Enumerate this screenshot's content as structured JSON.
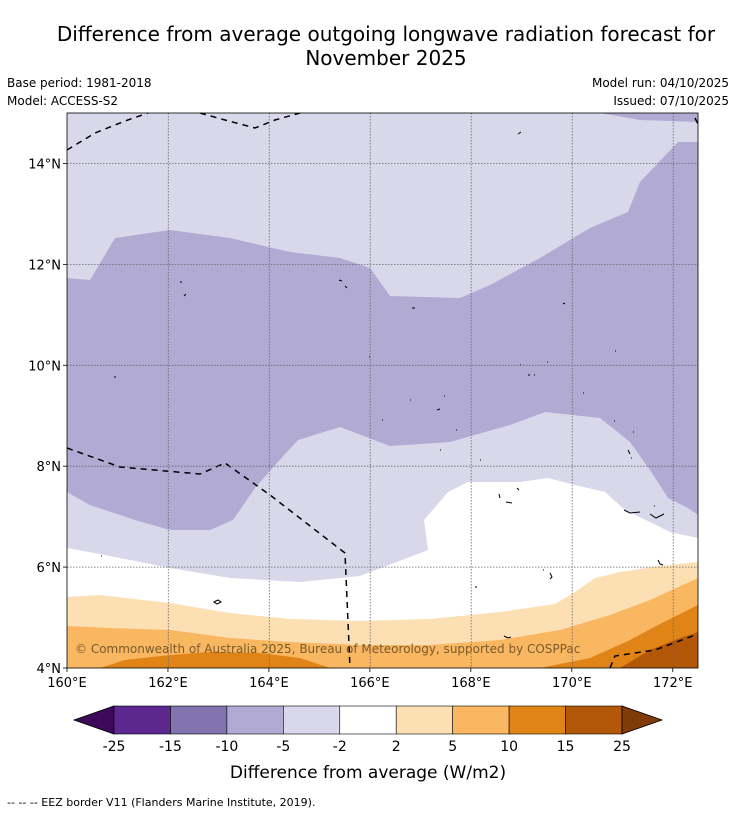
{
  "header": {
    "title_line1": "Difference from average outgoing longwave radiation forecast for",
    "title_line2": "November 2025",
    "base_period": "Base period: 1981-2018",
    "model": "Model: ACCESS-S2",
    "model_run": "Model run: 04/10/2025",
    "issued": "Issued: 07/10/2025"
  },
  "map": {
    "lon_range": [
      160,
      172.5
    ],
    "lat_range": [
      4,
      15
    ],
    "lat_ticks": [
      {
        "value": 4,
        "label": "4°N"
      },
      {
        "value": 6,
        "label": "6°N"
      },
      {
        "value": 8,
        "label": "8°N"
      },
      {
        "value": 10,
        "label": "10°N"
      },
      {
        "value": 12,
        "label": "12°N"
      },
      {
        "value": 14,
        "label": "14°N"
      }
    ],
    "lon_ticks": [
      {
        "value": 160,
        "label": "160°E"
      },
      {
        "value": 162,
        "label": "162°E"
      },
      {
        "value": 164,
        "label": "164°E"
      },
      {
        "value": 166,
        "label": "166°E"
      },
      {
        "value": 168,
        "label": "168°E"
      },
      {
        "value": 170,
        "label": "170°E"
      },
      {
        "value": 172,
        "label": "172°E"
      }
    ],
    "copyright": "© Commonwealth of Australia 2025, Bureau of Meteorology, supported by COSPPac"
  },
  "colorbar": {
    "label": "Difference from average (W/m2)",
    "ticks": [
      "-25",
      "-15",
      "-10",
      "-5",
      "-2",
      "2",
      "5",
      "10",
      "15",
      "25"
    ],
    "colors": [
      "#5c2890",
      "#8373af",
      "#b1aad3",
      "#d8d8ea",
      "#ffffff",
      "#fddfb4",
      "#f9b762",
      "#e08418",
      "#b35809"
    ],
    "extend_low_color": "#3d0a5a",
    "extend_high_color": "#7f3b08"
  },
  "footnote": "--  --  -- EEZ border V11 (Flanders Marine Institute, 2019)."
}
